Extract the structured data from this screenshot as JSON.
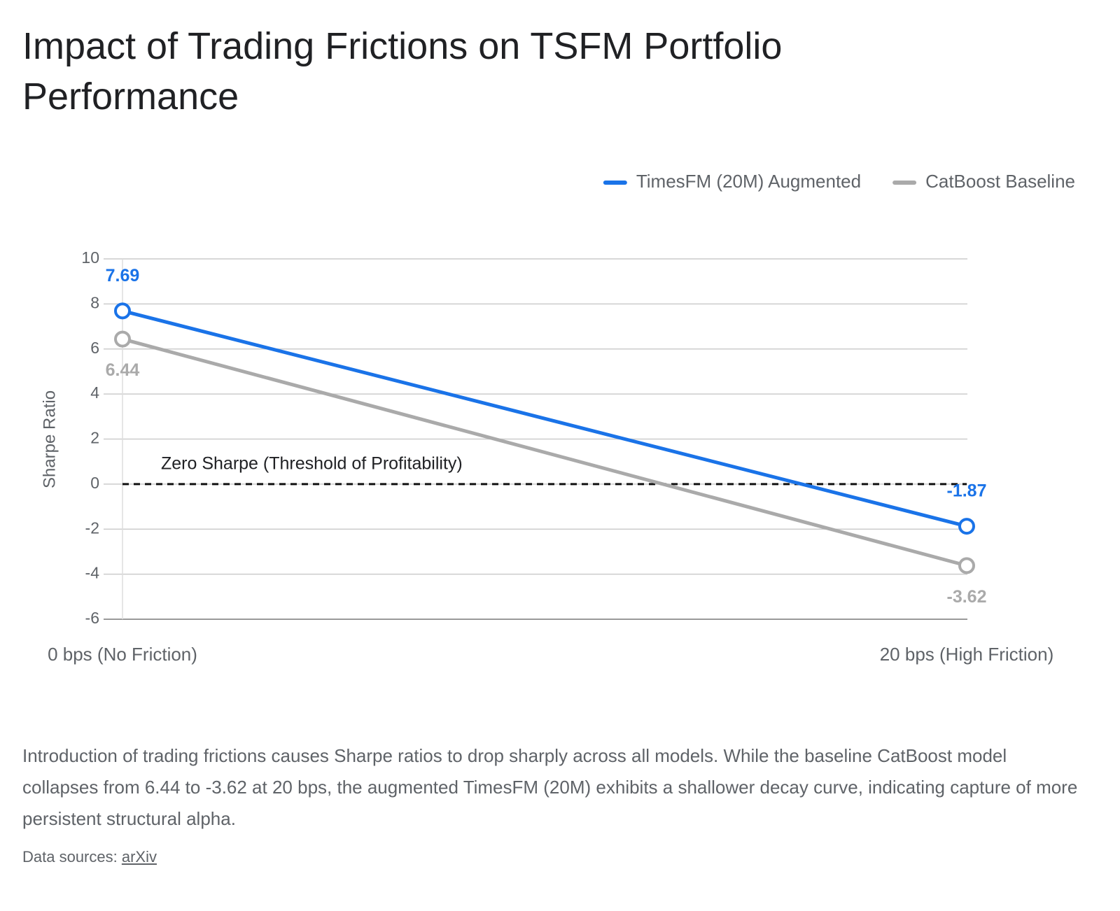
{
  "chart_data": {
    "type": "line",
    "title": "Impact of Trading Frictions on TSFM Portfolio Performance",
    "y_label": "Sharpe Ratio",
    "categories": [
      "0 bps (No Friction)",
      "20 bps (High Friction)"
    ],
    "series": [
      {
        "name": "TimesFM (20M) Augmented",
        "color": "#1a73e8",
        "values": [
          7.69,
          -1.87
        ]
      },
      {
        "name": "CatBoost Baseline",
        "color": "#aaaaaa",
        "values": [
          6.44,
          -3.62
        ]
      }
    ],
    "ylim": [
      -6,
      10
    ],
    "yticks": [
      -6,
      -4,
      -2,
      0,
      2,
      4,
      6,
      8,
      10
    ],
    "grid": true,
    "legend": "top-right",
    "reference_line": {
      "value": 0,
      "label": "Zero Sharpe (Threshold of Profitability)"
    }
  },
  "caption": "Introduction of trading frictions causes Sharpe ratios to drop sharply across all models. While the baseline CatBoost model collapses from 6.44 to -3.62 at 20 bps, the augmented TimesFM (20M) exhibits a shallower decay curve, indicating capture of more persistent structural alpha.",
  "source": {
    "label": "Data sources:",
    "link": "arXiv"
  }
}
